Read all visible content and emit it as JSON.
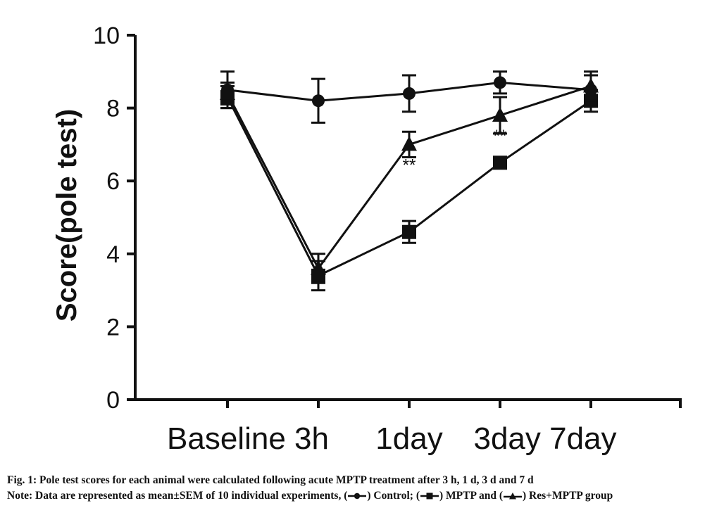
{
  "chart_data": {
    "type": "line",
    "categories": [
      "Baseline",
      "3h",
      "1day",
      "3day",
      "7day"
    ],
    "category_labels": [
      {
        "text": "Baseline 3h"
      },
      {
        "text": "1day"
      },
      {
        "text": "3day 7day"
      }
    ],
    "ylabel": "Score(pole test)",
    "ylim": [
      0,
      10
    ],
    "yticks": [
      0,
      2,
      4,
      6,
      8,
      10
    ],
    "series": [
      {
        "name": "Control",
        "marker": "circle",
        "values": [
          8.5,
          8.2,
          8.4,
          8.7,
          8.5
        ],
        "errors": [
          0.5,
          0.6,
          0.5,
          0.3,
          0.4
        ]
      },
      {
        "name": "MPTP",
        "marker": "square",
        "values": [
          8.3,
          3.4,
          4.6,
          6.5,
          8.2
        ],
        "errors": [
          0.3,
          0.4,
          0.3,
          0.1,
          0.3
        ]
      },
      {
        "name": "Res+MPTP",
        "marker": "triangle",
        "values": [
          8.4,
          3.6,
          7.0,
          7.8,
          8.6
        ],
        "errors": [
          0.3,
          0.4,
          0.35,
          0.5,
          0.4
        ]
      }
    ],
    "annotations": [
      {
        "text": "**",
        "x": "1day",
        "y": 6.4
      },
      {
        "text": "**",
        "x": "3day",
        "y": 7.2
      }
    ]
  },
  "caption": {
    "line1": "Fig. 1: Pole test scores for each animal were calculated following acute MPTP treatment after 3 h, 1 d, 3 d and 7 d",
    "line2_prefix": "Note: Data are represented as mean±SEM of 10 individual experiments, (",
    "control_label": ") Control; (",
    "mptp_label": ") MPTP and (",
    "res_label": ") Res+MPTP group"
  }
}
